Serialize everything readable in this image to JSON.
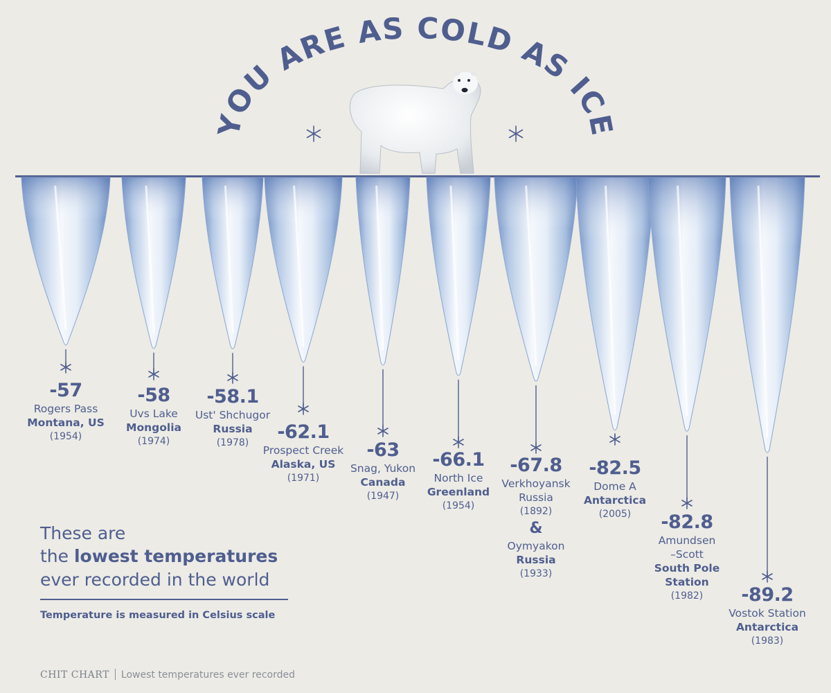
{
  "header": {
    "title": "YOU ARE AS COLD AS ICE"
  },
  "chart_data": {
    "type": "bar",
    "orientation": "hanging icicles (downward)",
    "unit": "Celsius",
    "categories": [
      "Rogers Pass, Montana, US",
      "Uvs Lake, Mongolia",
      "Ust' Shchugor, Russia",
      "Prospect Creek, Alaska, US",
      "Snag, Yukon, Canada",
      "North Ice, Greenland",
      "Verkhoyansk Russia & Oymyakon Russia",
      "Dome A, Antarctica",
      "Amundsen–Scott South Pole Station",
      "Vostok Station, Antarctica"
    ],
    "values": [
      -57,
      -58,
      -58.1,
      -62.1,
      -63,
      -66.1,
      -67.8,
      -82.5,
      -82.8,
      -89.2
    ],
    "grid": false,
    "legend": "none"
  },
  "labels": [
    {
      "value": "-57",
      "lines": [
        {
          "t": "Rogers Pass",
          "s": "n"
        },
        {
          "t": "Montana, US",
          "s": "b"
        },
        {
          "t": "(1954)",
          "s": "yr"
        }
      ]
    },
    {
      "value": "-58",
      "lines": [
        {
          "t": "Uvs Lake",
          "s": "n"
        },
        {
          "t": "Mongolia",
          "s": "b"
        },
        {
          "t": "(1974)",
          "s": "yr"
        }
      ]
    },
    {
      "value": "-58.1",
      "lines": [
        {
          "t": "Ust' Shchugor",
          "s": "n"
        },
        {
          "t": "Russia",
          "s": "b"
        },
        {
          "t": "(1978)",
          "s": "yr"
        }
      ]
    },
    {
      "value": "-62.1",
      "lines": [
        {
          "t": "Prospect Creek",
          "s": "n"
        },
        {
          "t": "Alaska, US",
          "s": "b"
        },
        {
          "t": "(1971)",
          "s": "yr"
        }
      ]
    },
    {
      "value": "-63",
      "lines": [
        {
          "t": "Snag, Yukon",
          "s": "n"
        },
        {
          "t": "Canada",
          "s": "b"
        },
        {
          "t": "(1947)",
          "s": "yr"
        }
      ]
    },
    {
      "value": "-66.1",
      "lines": [
        {
          "t": "North Ice",
          "s": "n"
        },
        {
          "t": "Greenland",
          "s": "b"
        },
        {
          "t": "(1954)",
          "s": "yr"
        }
      ]
    },
    {
      "value": "-67.8",
      "lines": [
        {
          "t": "Verkhoyansk",
          "s": "n"
        },
        {
          "t": "Russia",
          "s": "n"
        },
        {
          "t": "(1892)",
          "s": "yr"
        },
        {
          "t": "&",
          "s": "amp"
        },
        {
          "t": "Oymyakon",
          "s": "n"
        },
        {
          "t": "Russia",
          "s": "b"
        },
        {
          "t": "(1933)",
          "s": "yr"
        }
      ]
    },
    {
      "value": "-82.5",
      "lines": [
        {
          "t": "Dome A",
          "s": "n"
        },
        {
          "t": "Antarctica",
          "s": "b"
        },
        {
          "t": "(2005)",
          "s": "yr"
        }
      ]
    },
    {
      "value": "-82.8",
      "lines": [
        {
          "t": "Amundsen",
          "s": "n"
        },
        {
          "t": "–Scott",
          "s": "n"
        },
        {
          "t": "South Pole",
          "s": "b"
        },
        {
          "t": "Station",
          "s": "b"
        },
        {
          "t": "(1982)",
          "s": "yr"
        }
      ]
    },
    {
      "value": "-89.2",
      "lines": [
        {
          "t": "Vostok Station",
          "s": "n"
        },
        {
          "t": "Antarctica",
          "s": "b"
        },
        {
          "t": "(1983)",
          "s": "yr"
        }
      ]
    }
  ],
  "caption": {
    "line1": "These are",
    "line2_pre": "the ",
    "line2_bold": "lowest temperatures",
    "line3": "ever recorded in the world",
    "note": "Temperature is measured in Celsius scale"
  },
  "footer": {
    "brand": "CHIT CHART",
    "text": "Lowest temperatures ever recorded"
  },
  "colors": {
    "background": "#ecebe6",
    "ink": "#4f5e8e",
    "ice_light": "#f4f8fc",
    "ice_blue": "#9fb8d8",
    "ice_dark": "#3f62a4"
  },
  "icons": [
    "snowflake-icon",
    "polar-bear-illustration"
  ]
}
